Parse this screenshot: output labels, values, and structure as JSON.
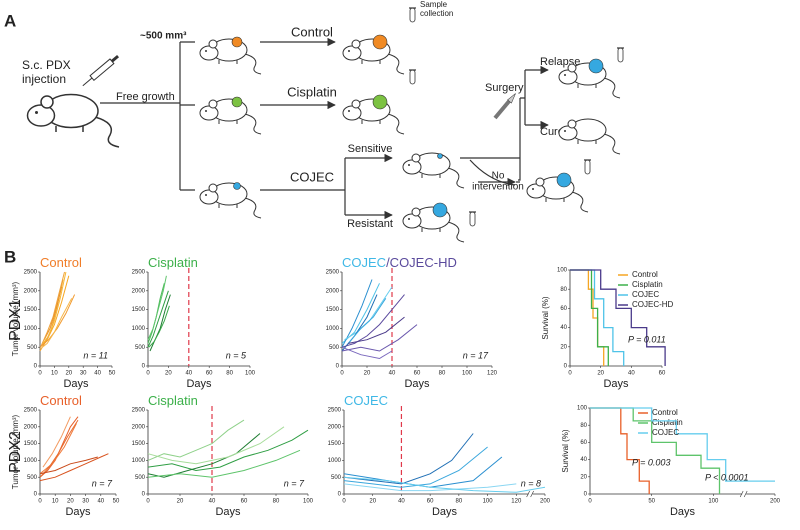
{
  "panel_a": {
    "label": "A",
    "injection": [
      "S.c. PDX",
      "injection"
    ],
    "volume": "~500 mm³",
    "free_growth": "Free growth",
    "control": "Control",
    "sample_collection": [
      "Sample",
      "collection"
    ],
    "cisplatin": "Cisplatin",
    "cojec": "COJEC",
    "sensitive": "Sensitive",
    "resistant": "Resistant",
    "surgery": "Surgery",
    "no_intervention": [
      "No",
      "intervention"
    ],
    "relapse": "Relapse",
    "cured": "Cured"
  },
  "panel_b": {
    "label": "B",
    "rows": [
      "PDX1",
      "PDX2"
    ]
  },
  "chart_data": [
    {
      "type": "line",
      "title": [
        {
          "text": "Control",
          "color": "#f07d28"
        }
      ],
      "xlabel": "Days",
      "ylabel": "Tumor volume (mm³)",
      "annotations": [
        "n = 11"
      ],
      "xlim": [
        0,
        50
      ],
      "xticks": [
        0,
        10,
        20,
        30,
        40,
        50
      ],
      "ylim": [
        0,
        2500
      ],
      "yticks": [
        0,
        500,
        1000,
        1500,
        2000,
        2500
      ],
      "series": [
        {
          "color": "#f5a623",
          "x": [
            0,
            5,
            10,
            15,
            20
          ],
          "values": [
            500,
            700,
            1100,
            1700,
            2400
          ]
        },
        {
          "color": "#f0a030",
          "x": [
            0,
            4,
            8,
            12,
            16
          ],
          "values": [
            400,
            650,
            1000,
            1600,
            2300
          ]
        },
        {
          "color": "#f7b733",
          "x": [
            2,
            6,
            10,
            14,
            18
          ],
          "values": [
            600,
            800,
            1200,
            1800,
            2500
          ]
        },
        {
          "color": "#f29a2e",
          "x": [
            0,
            6,
            12,
            18,
            24
          ],
          "values": [
            500,
            700,
            1000,
            1400,
            1900
          ]
        },
        {
          "color": "#e8922a",
          "x": [
            3,
            7,
            11,
            15
          ],
          "values": [
            700,
            1000,
            1500,
            2100
          ]
        },
        {
          "color": "#f6b84a",
          "x": [
            0,
            5,
            10,
            15,
            22
          ],
          "values": [
            450,
            600,
            900,
            1300,
            1800
          ]
        },
        {
          "color": "#eea23a",
          "x": [
            1,
            5,
            9,
            13,
            17
          ],
          "values": [
            550,
            900,
            1300,
            1900,
            2500
          ]
        }
      ]
    },
    {
      "type": "line",
      "title": [
        {
          "text": "Cisplatin",
          "color": "#3cb04a"
        }
      ],
      "xlabel": "Days",
      "annotations": [
        "n = 5"
      ],
      "vline": 40,
      "xlim": [
        0,
        100
      ],
      "xticks": [
        0,
        20,
        40,
        60,
        80,
        100
      ],
      "ylim": [
        0,
        2500
      ],
      "yticks": [
        0,
        500,
        1000,
        1500,
        2000,
        2500
      ],
      "series": [
        {
          "color": "#2f9e44",
          "x": [
            0,
            5,
            10,
            15,
            20
          ],
          "values": [
            500,
            800,
            1200,
            1600,
            2000
          ]
        },
        {
          "color": "#4cbb5a",
          "x": [
            0,
            4,
            8,
            12,
            16
          ],
          "values": [
            600,
            900,
            1300,
            1800,
            2200
          ]
        },
        {
          "color": "#1e7d32",
          "x": [
            2,
            7,
            12,
            17,
            22
          ],
          "values": [
            400,
            700,
            1000,
            1500,
            1900
          ]
        },
        {
          "color": "#5ec46b",
          "x": [
            0,
            5,
            10,
            15,
            18
          ],
          "values": [
            700,
            1000,
            1500,
            2000,
            2400
          ]
        },
        {
          "color": "#3aa84a",
          "x": [
            1,
            6,
            11,
            16,
            21
          ],
          "values": [
            500,
            650,
            900,
            1200,
            1600
          ]
        }
      ]
    },
    {
      "type": "line",
      "title": [
        {
          "text": "COJEC",
          "color": "#3fb8e6"
        },
        {
          "text": "/COJEC-HD",
          "color": "#5a4a9c"
        }
      ],
      "xlabel": "Days",
      "annotations": [
        "n = 17"
      ],
      "vline": 40,
      "xlim": [
        0,
        120
      ],
      "xticks": [
        0,
        20,
        40,
        60,
        80,
        100,
        120
      ],
      "ylim": [
        0,
        2500
      ],
      "yticks": [
        0,
        500,
        1000,
        1500,
        2000,
        2500
      ],
      "series": [
        {
          "color": "#4fc3e8",
          "x": [
            0,
            10,
            20,
            30
          ],
          "values": [
            600,
            900,
            1500,
            2200
          ]
        },
        {
          "color": "#2a8fd0",
          "x": [
            0,
            8,
            16,
            24
          ],
          "values": [
            500,
            1000,
            1600,
            2300
          ]
        },
        {
          "color": "#66cdee",
          "x": [
            2,
            12,
            22,
            32,
            40
          ],
          "values": [
            700,
            900,
            1200,
            1700,
            2100
          ]
        },
        {
          "color": "#1f6fb5",
          "x": [
            0,
            10,
            20,
            28
          ],
          "values": [
            400,
            800,
            1300,
            1900
          ]
        },
        {
          "color": "#3aa7dd",
          "x": [
            5,
            15,
            25,
            35
          ],
          "values": [
            600,
            1000,
            1300,
            1800
          ]
        },
        {
          "color": "#5b4a9e",
          "x": [
            0,
            10,
            20,
            30,
            40,
            50
          ],
          "values": [
            500,
            600,
            800,
            1100,
            1500,
            1900
          ]
        },
        {
          "color": "#6a58ad",
          "x": [
            0,
            15,
            30,
            45,
            60
          ],
          "values": [
            400,
            500,
            400,
            700,
            1100
          ]
        },
        {
          "color": "#4a3a8a",
          "x": [
            5,
            20,
            35,
            50
          ],
          "values": [
            600,
            700,
            900,
            1300
          ]
        },
        {
          "color": "#7a68bd",
          "x": [
            0,
            15,
            30,
            40
          ],
          "values": [
            500,
            300,
            200,
            400
          ]
        }
      ]
    },
    {
      "type": "step",
      "xlabel": "Days",
      "ylabel": "Survival (%)",
      "annotations": [
        "P = 0.011"
      ],
      "xlim": [
        0,
        60
      ],
      "xticks": [
        0,
        20,
        40,
        60
      ],
      "ylim": [
        0,
        100
      ],
      "yticks": [
        0,
        20,
        40,
        60,
        80,
        100
      ],
      "series": [
        {
          "name": "Control",
          "color": "#f5a623",
          "x": [
            0,
            12,
            12,
            15,
            15,
            18,
            18,
            22,
            22
          ],
          "values": [
            100,
            100,
            80,
            80,
            50,
            50,
            20,
            20,
            0
          ]
        },
        {
          "name": "Cisplatin",
          "color": "#3cb04a",
          "x": [
            0,
            14,
            14,
            18,
            18,
            25,
            25
          ],
          "values": [
            100,
            100,
            60,
            60,
            20,
            20,
            0
          ]
        },
        {
          "name": "COJEC",
          "color": "#4fc3e8",
          "x": [
            0,
            16,
            16,
            22,
            22,
            28,
            28,
            35,
            35
          ],
          "values": [
            100,
            100,
            70,
            70,
            40,
            40,
            15,
            15,
            0
          ]
        },
        {
          "name": "COJEC-HD",
          "color": "#4a3a8a",
          "x": [
            0,
            20,
            20,
            30,
            30,
            40,
            40,
            50,
            50,
            62,
            62
          ],
          "values": [
            100,
            100,
            80,
            80,
            60,
            60,
            40,
            40,
            20,
            20,
            0
          ]
        }
      ]
    },
    {
      "type": "line",
      "title": [
        {
          "text": "Control",
          "color": "#e8602a"
        }
      ],
      "xlabel": "Days",
      "ylabel": "Tumor volume (mm³)",
      "annotations": [
        "n = 7"
      ],
      "xlim": [
        0,
        50
      ],
      "xticks": [
        0,
        10,
        20,
        30,
        40,
        50
      ],
      "ylim": [
        0,
        2500
      ],
      "yticks": [
        0,
        500,
        1000,
        1500,
        2000,
        2500
      ],
      "series": [
        {
          "color": "#e8602a",
          "x": [
            0,
            5,
            10,
            15,
            20,
            25
          ],
          "values": [
            500,
            700,
            1000,
            1500,
            2000,
            2300
          ]
        },
        {
          "color": "#f07a3a",
          "x": [
            0,
            8,
            16,
            24
          ],
          "values": [
            600,
            900,
            1400,
            2100
          ]
        },
        {
          "color": "#d9531e",
          "x": [
            0,
            10,
            20,
            30,
            40,
            45
          ],
          "values": [
            400,
            500,
            700,
            900,
            1100,
            1200
          ]
        },
        {
          "color": "#f39a60",
          "x": [
            2,
            8,
            14,
            20
          ],
          "values": [
            800,
            1200,
            1700,
            2300
          ]
        },
        {
          "color": "#e86c30",
          "x": [
            0,
            6,
            12,
            18,
            25
          ],
          "values": [
            500,
            800,
            1200,
            1700,
            2200
          ]
        },
        {
          "color": "#c94a1a",
          "x": [
            0,
            10,
            20,
            30,
            38
          ],
          "values": [
            600,
            700,
            900,
            1000,
            1100
          ]
        }
      ]
    },
    {
      "type": "line",
      "title": [
        {
          "text": "Cisplatin",
          "color": "#3cb04a"
        }
      ],
      "xlabel": "Days",
      "annotations": [
        "n = 7"
      ],
      "vline": 40,
      "xlim": [
        0,
        100
      ],
      "xticks": [
        0,
        20,
        40,
        60,
        80,
        100
      ],
      "ylim": [
        0,
        2500
      ],
      "yticks": [
        0,
        500,
        1000,
        1500,
        2000,
        2500
      ],
      "series": [
        {
          "color": "#8fd18a",
          "x": [
            0,
            10,
            20,
            30,
            40,
            50,
            60
          ],
          "values": [
            1000,
            1200,
            1100,
            1300,
            1500,
            1900,
            2200
          ]
        },
        {
          "color": "#2f9e44",
          "x": [
            0,
            15,
            30,
            45,
            60,
            75,
            90,
            100
          ],
          "values": [
            800,
            900,
            700,
            800,
            1100,
            1300,
            1600,
            1900
          ]
        },
        {
          "color": "#1e7d32",
          "x": [
            0,
            10,
            25,
            40,
            55,
            70
          ],
          "values": [
            600,
            500,
            700,
            900,
            1200,
            1800
          ]
        },
        {
          "color": "#5ec46b",
          "x": [
            0,
            20,
            40,
            60,
            80,
            95
          ],
          "values": [
            500,
            600,
            500,
            700,
            1000,
            1300
          ]
        },
        {
          "color": "#a6dc9a",
          "x": [
            0,
            15,
            30,
            50,
            70,
            85
          ],
          "values": [
            1200,
            1000,
            900,
            1100,
            1500,
            2000
          ]
        }
      ]
    },
    {
      "type": "line",
      "title": [
        {
          "text": "COJEC",
          "color": "#3fb8e6"
        }
      ],
      "xlabel": "Days",
      "annotations": [
        "n = 8"
      ],
      "vline": 40,
      "xlim": [
        0,
        200
      ],
      "xticks": [
        0,
        20,
        40,
        60,
        80,
        100,
        120,
        200
      ],
      "ylim": [
        0,
        2500
      ],
      "yticks": [
        0,
        500,
        1000,
        1500,
        2000,
        2500
      ],
      "series": [
        {
          "color": "#1f6fb5",
          "x": [
            0,
            20,
            40,
            60,
            75,
            90
          ],
          "values": [
            500,
            400,
            300,
            600,
            1000,
            1800
          ]
        },
        {
          "color": "#3aa7dd",
          "x": [
            0,
            20,
            40,
            60,
            80,
            100
          ],
          "values": [
            400,
            300,
            200,
            300,
            700,
            1400
          ]
        },
        {
          "color": "#2a8fd0",
          "x": [
            0,
            30,
            60,
            90,
            110
          ],
          "values": [
            600,
            400,
            200,
            400,
            1100
          ]
        },
        {
          "color": "#8ad6f2",
          "x": [
            0,
            20,
            40,
            60,
            80,
            100,
            120
          ],
          "values": [
            300,
            200,
            100,
            100,
            150,
            200,
            300
          ]
        },
        {
          "color": "#66cdee",
          "x": [
            0,
            30,
            60,
            90,
            120,
            200
          ],
          "values": [
            500,
            400,
            200,
            100,
            50,
            200
          ]
        }
      ]
    },
    {
      "type": "step",
      "xlabel": "Days",
      "ylabel": "Survival (%)",
      "annotations": [
        "P = 0.003",
        "P < 0.0001"
      ],
      "xlim": [
        0,
        200
      ],
      "xticks": [
        0,
        50,
        100,
        200
      ],
      "ylim": [
        0,
        100
      ],
      "yticks": [
        0,
        20,
        40,
        60,
        80,
        100
      ],
      "series": [
        {
          "name": "Control",
          "color": "#e8602a",
          "x": [
            0,
            25,
            25,
            30,
            30,
            40,
            40,
            48,
            48
          ],
          "values": [
            100,
            100,
            70,
            70,
            40,
            40,
            15,
            15,
            0
          ]
        },
        {
          "name": "Cisplatin",
          "color": "#5ec46b",
          "x": [
            0,
            35,
            35,
            50,
            50,
            70,
            70,
            90,
            90,
            110,
            110
          ],
          "values": [
            100,
            100,
            85,
            85,
            60,
            60,
            45,
            45,
            30,
            30,
            0
          ]
        },
        {
          "name": "COJEC",
          "color": "#66cdee",
          "x": [
            0,
            50,
            50,
            70,
            70,
            95,
            95,
            120,
            120,
            200
          ],
          "values": [
            100,
            100,
            85,
            85,
            70,
            70,
            40,
            40,
            15,
            15
          ]
        }
      ]
    }
  ]
}
